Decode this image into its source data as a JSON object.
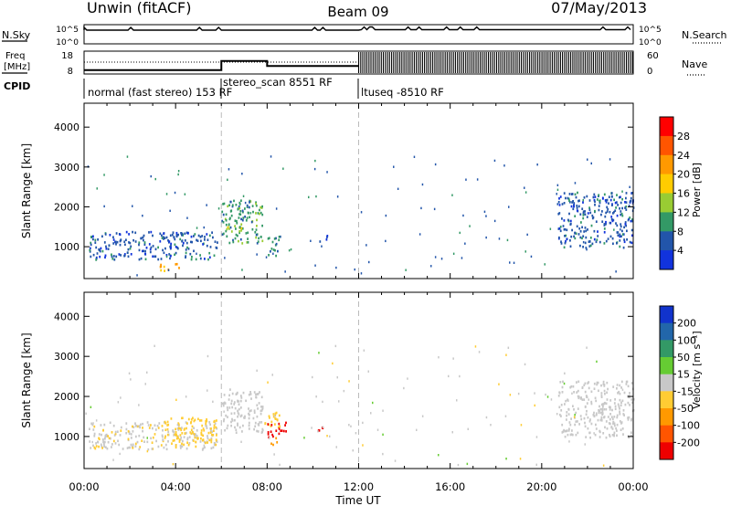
{
  "header": {
    "station": "Unwin (fitACF)",
    "beam": "Beam 09",
    "date": "07/May/2013"
  },
  "strips": {
    "nsky_label": "N.Sky",
    "nsearch_label": "N.Search",
    "nsky_ticks": [
      "10^5",
      "10^0"
    ],
    "nsearch_ticks": [
      "10^5",
      "10^0"
    ],
    "freq_label_1": "Freq",
    "freq_label_2": "[MHz]",
    "freq_ticks": [
      "18",
      "8"
    ],
    "nave_label": "Nave",
    "nave_ticks": [
      "60",
      "0"
    ],
    "cpid_label": "CPID",
    "cpid_segments": [
      {
        "label": "normal (fast stereo) 153 RF",
        "start": 0,
        "end": 6
      },
      {
        "label": "stereo_scan 8551 RF",
        "start": 6,
        "end": 12
      },
      {
        "label": "ltuseq -8510 RF",
        "start": 12,
        "end": 24
      }
    ]
  },
  "colorbars": {
    "power": {
      "label": "Power [dB]",
      "ticks": [
        "28",
        "24",
        "20",
        "16",
        "12",
        "8",
        "4"
      ],
      "colors": [
        "#ff0000",
        "#ff5500",
        "#ff9900",
        "#ffcc00",
        "#99cc33",
        "#339966",
        "#2255aa",
        "#1133dd"
      ]
    },
    "velocity": {
      "label": "Velocity [m s⁻¹]",
      "ticks": [
        "200",
        "100",
        "50",
        "15",
        "-15",
        "-50",
        "-100",
        "-200"
      ],
      "colors": [
        "#1133cc",
        "#2266aa",
        "#339966",
        "#66cc33",
        "#c8c8c8",
        "#ffcc33",
        "#ff9900",
        "#ff5500",
        "#ee0000"
      ]
    }
  },
  "chart_data": [
    {
      "type": "heatmap",
      "title": "Power",
      "xlabel": "Time UT",
      "ylabel": "Slant Range [km]",
      "xlim": [
        0,
        24
      ],
      "ylim": [
        200,
        4600
      ],
      "xticks": [
        "00:00",
        "04:00",
        "08:00",
        "12:00",
        "16:00",
        "20:00",
        "00:00"
      ],
      "yticks": [
        "4000",
        "3000",
        "2000",
        "1000"
      ],
      "clusters": [
        {
          "t0": 0.2,
          "t1": 5.8,
          "r0": 700,
          "r1": 1400,
          "value": 6
        },
        {
          "t0": 3.3,
          "t1": 4.2,
          "r0": 420,
          "r1": 620,
          "value": 22
        },
        {
          "t0": 6.0,
          "t1": 7.8,
          "r0": 1100,
          "r1": 2200,
          "value": 10
        },
        {
          "t0": 6.2,
          "t1": 6.9,
          "r0": 1300,
          "r1": 1600,
          "value": 14
        },
        {
          "t0": 8.0,
          "t1": 8.6,
          "r0": 800,
          "r1": 1300,
          "value": 9
        },
        {
          "t0": 10.1,
          "t1": 10.6,
          "r0": 1150,
          "r1": 1300,
          "value": 5
        },
        {
          "t0": 20.7,
          "t1": 24.0,
          "r0": 1000,
          "r1": 2400,
          "value": 6
        }
      ]
    },
    {
      "type": "heatmap",
      "title": "Velocity",
      "xlabel": "Time UT",
      "ylabel": "Slant Range [km]",
      "xlim": [
        0,
        24
      ],
      "ylim": [
        200,
        4600
      ],
      "xticks": [
        "00:00",
        "04:00",
        "08:00",
        "12:00",
        "16:00",
        "20:00",
        "00:00"
      ],
      "yticks": [
        "4000",
        "3000",
        "2000",
        "1000"
      ],
      "clusters": [
        {
          "t0": 0.2,
          "t1": 5.8,
          "r0": 700,
          "r1": 1400,
          "value": -10
        },
        {
          "t0": 3.5,
          "t1": 5.8,
          "r0": 800,
          "r1": 1500,
          "value": -40
        },
        {
          "t0": 6.0,
          "t1": 7.8,
          "r0": 1100,
          "r1": 2200,
          "value": -5
        },
        {
          "t0": 7.8,
          "t1": 8.6,
          "r0": 1250,
          "r1": 1700,
          "value": -30
        },
        {
          "t0": 8.1,
          "t1": 8.5,
          "r0": 800,
          "r1": 1000,
          "value": -80
        },
        {
          "t0": 8.0,
          "t1": 8.8,
          "r0": 1000,
          "r1": 1400,
          "value": -250
        },
        {
          "t0": 10.1,
          "t1": 10.6,
          "r0": 1150,
          "r1": 1300,
          "value": -220
        },
        {
          "t0": 20.7,
          "t1": 24.0,
          "r0": 1000,
          "r1": 2400,
          "value": 0
        }
      ]
    }
  ]
}
